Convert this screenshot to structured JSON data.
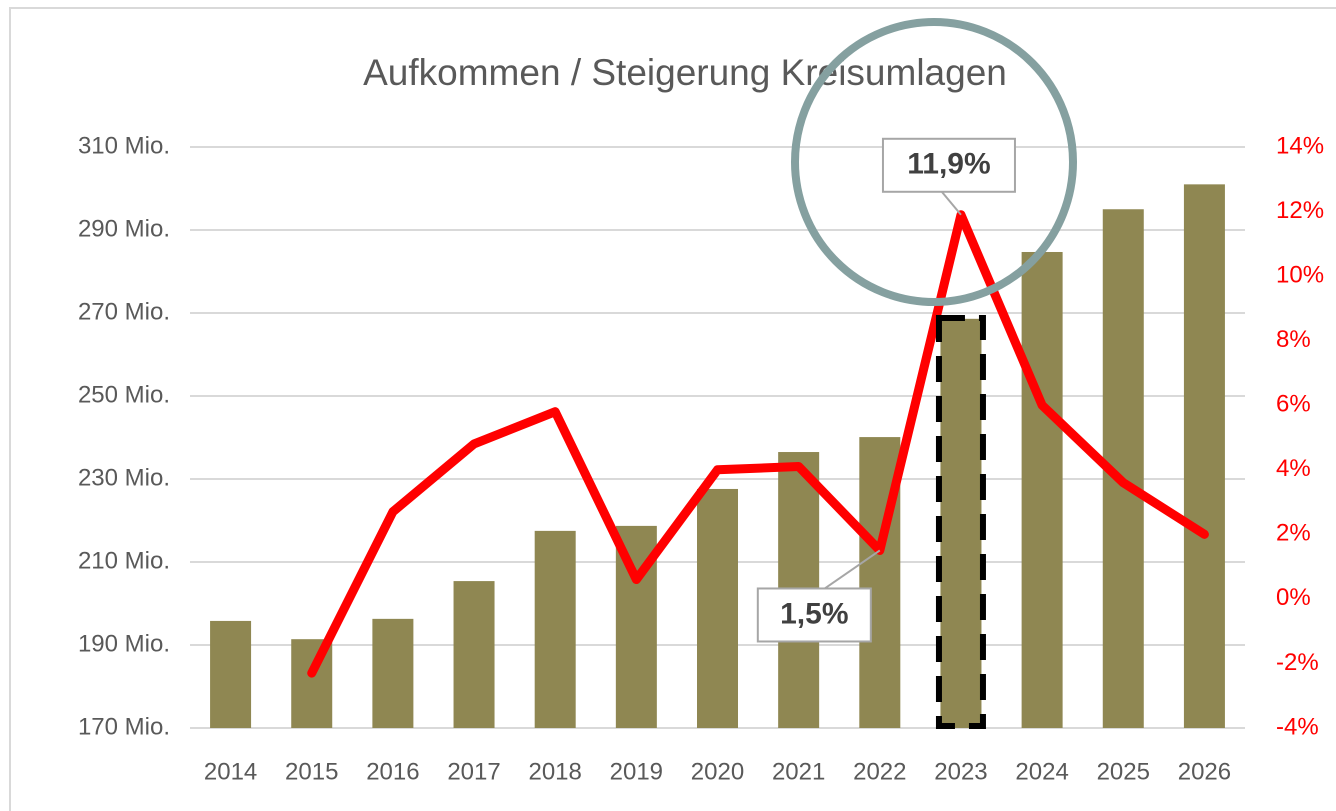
{
  "chart_data": {
    "type": "bar",
    "title": "Aufkommen / Steigerung Kreisumlagen",
    "categories": [
      "2014",
      "2015",
      "2016",
      "2017",
      "2018",
      "2019",
      "2020",
      "2021",
      "2022",
      "2023",
      "2024",
      "2025",
      "2026"
    ],
    "series": [
      {
        "type": "bar",
        "color": "#8f8752",
        "values": [
          195.8,
          191.4,
          196.3,
          205.4,
          217.5,
          218.7,
          227.6,
          236.5,
          240.1,
          268.6,
          284.7,
          295,
          301
        ]
      },
      {
        "type": "line",
        "axis": "y2",
        "color": "#ff0000",
        "values": [
          null,
          -2.3,
          2.7,
          4.8,
          5.8,
          0.6,
          4.0,
          4.1,
          1.5,
          11.9,
          6.0,
          3.6,
          2.0
        ],
        "value_labels": [
          null,
          null,
          null,
          null,
          null,
          null,
          null,
          null,
          "1,5%",
          "11,9%",
          null,
          null,
          null
        ]
      }
    ],
    "ylim": [
      170,
      310
    ],
    "yticks": [
      {
        "value": 170,
        "label": "170 Mio."
      },
      {
        "value": 190,
        "label": "190 Mio."
      },
      {
        "value": 210,
        "label": "210 Mio."
      },
      {
        "value": 230,
        "label": "230 Mio."
      },
      {
        "value": 250,
        "label": "250 Mio."
      },
      {
        "value": 270,
        "label": "270 Mio."
      },
      {
        "value": 290,
        "label": "290 Mio."
      },
      {
        "value": 310,
        "label": "310 Mio."
      }
    ],
    "y2lim": [
      -4,
      14
    ],
    "y2ticks": [
      {
        "value": -4,
        "label": "-4%"
      },
      {
        "value": -2,
        "label": "-2%"
      },
      {
        "value": 0,
        "label": "0%"
      },
      {
        "value": 2,
        "label": "2%"
      },
      {
        "value": 4,
        "label": "4%"
      },
      {
        "value": 6,
        "label": "6%"
      },
      {
        "value": 8,
        "label": "8%"
      },
      {
        "value": 10,
        "label": "10%"
      },
      {
        "value": 12,
        "label": "12%"
      },
      {
        "value": 14,
        "label": "14%"
      }
    ],
    "grid": true
  }
}
